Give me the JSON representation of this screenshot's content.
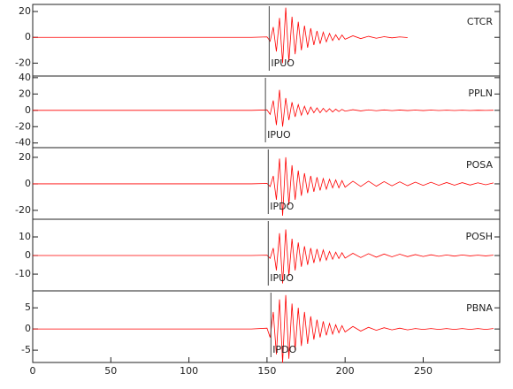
{
  "chart_data": [
    {
      "type": "line",
      "xlim": [
        0,
        299
      ],
      "ylim": [
        -30,
        25.5
      ],
      "yticks": [
        20,
        0,
        -20
      ],
      "x": [
        0,
        20,
        40,
        60,
        80,
        100,
        120,
        140,
        150,
        152,
        154,
        156,
        158,
        160,
        162,
        164,
        166,
        168,
        170,
        172,
        174,
        176,
        178,
        180,
        182,
        184,
        186,
        188,
        190,
        192,
        194,
        196,
        198,
        200,
        205,
        210,
        215,
        220,
        225,
        230,
        235,
        240,
        245,
        250,
        255,
        260,
        265,
        270,
        275,
        280,
        285,
        290,
        295
      ],
      "series": [
        {
          "name": "CTCR",
          "color": "#ff0000",
          "values": [
            0,
            0,
            0,
            0,
            0,
            0,
            0,
            0,
            0.3,
            -3,
            8,
            -11,
            15,
            -20,
            23,
            -19,
            16,
            -13,
            12,
            -10,
            9,
            -8,
            7,
            -6,
            5,
            -5,
            4,
            -3.5,
            3,
            -2.5,
            2,
            -2,
            1.8,
            -1.5,
            1.2,
            -1,
            0.8,
            -0.7,
            0.5,
            -0.4,
            0.3,
            -0.2,
            null,
            null,
            null,
            null,
            null,
            null,
            null,
            null,
            null,
            null,
            null
          ]
        }
      ],
      "pick": {
        "x": 151.4,
        "label": "IPUO"
      }
    },
    {
      "type": "line",
      "xlim": [
        0,
        299
      ],
      "ylim": [
        -45.7,
        42
      ],
      "yticks": [
        40,
        20,
        0,
        -20,
        -40
      ],
      "x": [
        0,
        20,
        40,
        60,
        80,
        100,
        120,
        140,
        150,
        152,
        154,
        156,
        158,
        160,
        162,
        164,
        166,
        168,
        170,
        172,
        174,
        176,
        178,
        180,
        182,
        184,
        186,
        188,
        190,
        192,
        194,
        196,
        198,
        200,
        205,
        210,
        215,
        220,
        225,
        230,
        235,
        240,
        245,
        250,
        255,
        260,
        265,
        270,
        275,
        280,
        285,
        290,
        295
      ],
      "series": [
        {
          "name": "PPLN",
          "color": "#ff0000",
          "values": [
            0,
            0,
            0,
            0,
            0,
            0,
            0,
            0,
            0.5,
            -5,
            12,
            -18,
            25,
            -20,
            15,
            -12,
            10,
            -8,
            7,
            -6,
            5,
            -5,
            4,
            -3,
            3,
            -3,
            2.5,
            -2,
            2,
            -2,
            1.5,
            -1.5,
            1.2,
            -1,
            0.8,
            -0.7,
            0.6,
            -0.5,
            0.5,
            -0.4,
            0.4,
            -0.3,
            0.3,
            -0.3,
            0.3,
            -0.2,
            0.2,
            -0.2,
            0.2,
            -0.2,
            0.1,
            -0.1,
            0.1
          ]
        }
      ],
      "pick": {
        "x": 149,
        "label": "IPUO"
      }
    },
    {
      "type": "line",
      "xlim": [
        0,
        299
      ],
      "ylim": [
        -26.7,
        27.3
      ],
      "yticks": [
        20,
        0,
        -20
      ],
      "x": [
        0,
        20,
        40,
        60,
        80,
        100,
        120,
        140,
        150,
        152,
        154,
        156,
        158,
        160,
        162,
        164,
        166,
        168,
        170,
        172,
        174,
        176,
        178,
        180,
        182,
        184,
        186,
        188,
        190,
        192,
        194,
        196,
        198,
        200,
        205,
        210,
        215,
        220,
        225,
        230,
        235,
        240,
        245,
        250,
        255,
        260,
        265,
        270,
        275,
        280,
        285,
        290,
        295
      ],
      "series": [
        {
          "name": "POSA",
          "color": "#ff0000",
          "values": [
            0,
            0,
            0,
            0,
            0,
            0,
            0,
            0,
            0.3,
            -2,
            6,
            -12,
            19,
            -24,
            20,
            -16,
            14,
            -12,
            10,
            -9,
            8,
            -7,
            6,
            -6,
            5,
            -5,
            4,
            -4,
            3.5,
            -3,
            3,
            -3,
            2.5,
            -2.5,
            2,
            -2,
            2,
            -1.8,
            1.7,
            -1.5,
            1.5,
            -1.4,
            1.3,
            -1.2,
            1.2,
            -1.1,
            1,
            -1,
            0.9,
            -0.9,
            0.8,
            -0.7,
            0.7
          ]
        }
      ],
      "pick": {
        "x": 150.8,
        "label": "IPDO"
      }
    },
    {
      "type": "line",
      "xlim": [
        0,
        299
      ],
      "ylim": [
        -19,
        19.5
      ],
      "yticks": [
        10,
        0,
        -10
      ],
      "x": [
        0,
        20,
        40,
        60,
        80,
        100,
        120,
        140,
        150,
        152,
        154,
        156,
        158,
        160,
        162,
        164,
        166,
        168,
        170,
        172,
        174,
        176,
        178,
        180,
        182,
        184,
        186,
        188,
        190,
        192,
        194,
        196,
        198,
        200,
        205,
        210,
        215,
        220,
        225,
        230,
        235,
        240,
        245,
        250,
        255,
        260,
        265,
        270,
        275,
        280,
        285,
        290,
        295
      ],
      "series": [
        {
          "name": "POSH",
          "color": "#ff0000",
          "values": [
            0,
            0,
            0,
            0,
            0,
            0,
            0,
            0,
            0.2,
            -1.5,
            4,
            -8,
            12,
            -15,
            14,
            -11,
            9,
            -8,
            7,
            -6,
            5,
            -5,
            4,
            -4,
            3.5,
            -3,
            3,
            -2.5,
            2.2,
            -2,
            1.8,
            -1.6,
            1.5,
            -1.4,
            1.2,
            -1.1,
            1,
            -0.9,
            0.8,
            -0.7,
            0.7,
            -0.6,
            0.5,
            -0.5,
            0.4,
            -0.4,
            0.3,
            -0.3,
            0.3,
            -0.2,
            0.2,
            -0.2,
            0.2
          ]
        }
      ],
      "pick": {
        "x": 150.8,
        "label": "IPUO"
      }
    },
    {
      "type": "line",
      "xlim": [
        0,
        299
      ],
      "ylim": [
        -7.9,
        9
      ],
      "yticks": [
        5,
        0,
        -5
      ],
      "xticks": [
        0,
        50,
        100,
        150,
        200,
        250
      ],
      "x": [
        0,
        20,
        40,
        60,
        80,
        100,
        120,
        140,
        150,
        152,
        154,
        156,
        158,
        160,
        162,
        164,
        166,
        168,
        170,
        172,
        174,
        176,
        178,
        180,
        182,
        184,
        186,
        188,
        190,
        192,
        194,
        196,
        198,
        200,
        205,
        210,
        215,
        220,
        225,
        230,
        235,
        240,
        245,
        250,
        255,
        260,
        265,
        270,
        275,
        280,
        285,
        290,
        295
      ],
      "series": [
        {
          "name": "PBNA",
          "color": "#ff0000",
          "values": [
            0,
            0,
            0,
            0,
            0,
            0,
            0,
            0,
            0.2,
            -2,
            4,
            -6,
            7,
            -8,
            8,
            -7,
            6,
            -5,
            5,
            -4,
            4,
            -3.5,
            3,
            -2.5,
            2.2,
            -2,
            1.8,
            -1.5,
            1.3,
            -1.2,
            1,
            -0.9,
            0.8,
            -0.7,
            0.6,
            -0.5,
            0.4,
            -0.3,
            0.3,
            -0.2,
            0.2,
            -0.2,
            0.1,
            -0.1,
            0.1,
            -0.1,
            0.1,
            -0.1,
            0.1,
            -0.1,
            0.1,
            -0.1,
            0.1
          ]
        }
      ],
      "pick": {
        "x": 152.5,
        "label": "IPDO"
      }
    }
  ]
}
